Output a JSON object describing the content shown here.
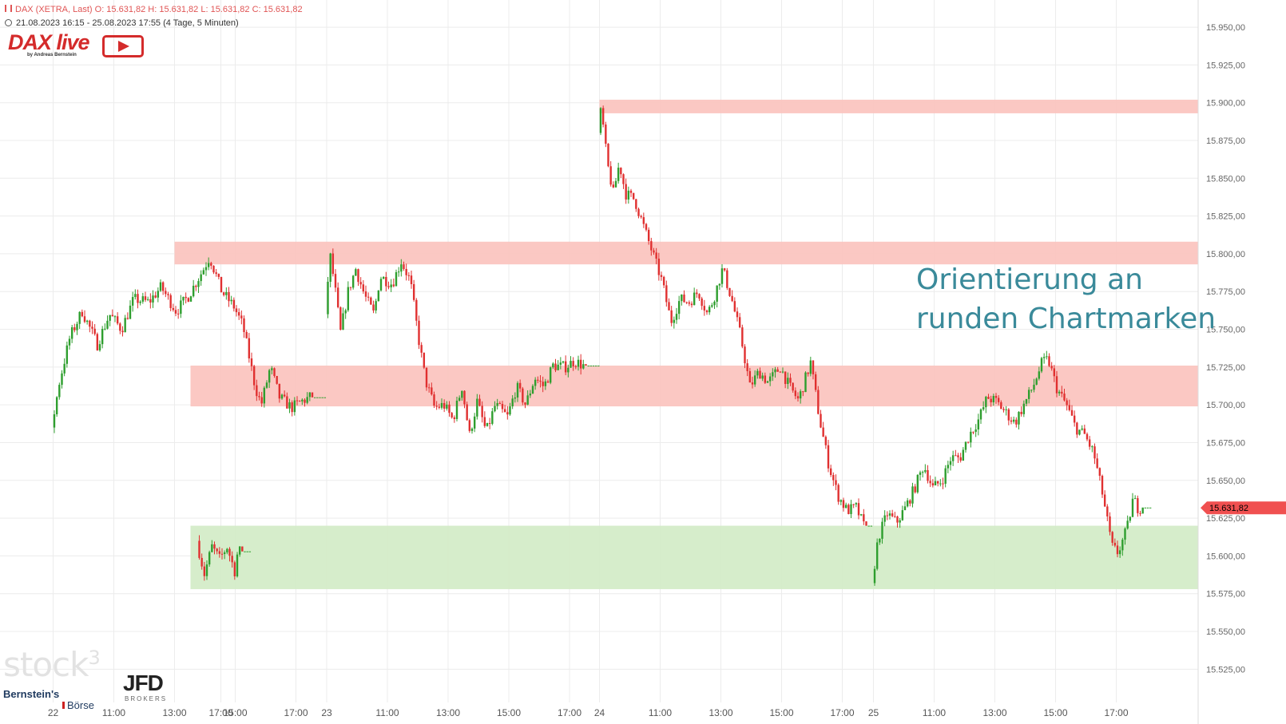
{
  "header": {
    "line1": "DAX (XETRA, Last)  O: 15.631,82  H: 15.631,82  L: 15.631,82  C: 15.631,82",
    "line2": "21.08.2023 16:15 - 25.08.2023 17:55   (4 Tage, 5 Minuten)"
  },
  "logo": {
    "title": "DAX live",
    "subtitle": "by Andreas Bernstein"
  },
  "annotation": {
    "line1": "Orientierung an",
    "line2": "runden Chartmarken"
  },
  "watermarks": {
    "stock": "stock",
    "stock_sup": "3",
    "bernstein": "Bernstein's",
    "boerse": "Börse",
    "jfd": "JFD",
    "brokers": "BROKERS"
  },
  "colors": {
    "up": "#2e9e2e",
    "down": "#e03030",
    "resistance_zone": "#fbc5c0",
    "support_zone": "#d4ecc8",
    "annotation": "#3a8a9a",
    "price_tag": "#f05050"
  },
  "chart_data": {
    "type": "candlestick",
    "ylim": [
      15503,
      15968
    ],
    "yticks": [
      15525,
      15550,
      15575,
      15600,
      15625,
      15650,
      15675,
      15700,
      15725,
      15750,
      15775,
      15800,
      15825,
      15850,
      15875,
      15900,
      15925,
      15950
    ],
    "ytick_labels": [
      "15.525,00",
      "15.550,00",
      "15.575,00",
      "15.600,00",
      "15.625,00",
      "15.650,00",
      "15.675,00",
      "15.700,00",
      "15.725,00",
      "15.750,00",
      "15.775,00",
      "15.800,00",
      "15.825,00",
      "15.850,00",
      "15.875,00",
      "15.900,00",
      "15.925,00",
      "15.950,00"
    ],
    "xticks": [
      {
        "label": "17:00",
        "session": 0,
        "hours": 17
      },
      {
        "label": "22",
        "session": 1,
        "hours": 9
      },
      {
        "label": "11:00",
        "session": 1,
        "hours": 11
      },
      {
        "label": "13:00",
        "session": 1,
        "hours": 13
      },
      {
        "label": "15:00",
        "session": 1,
        "hours": 15
      },
      {
        "label": "17:00",
        "session": 1,
        "hours": 17
      },
      {
        "label": "23",
        "session": 2,
        "hours": 9
      },
      {
        "label": "11:00",
        "session": 2,
        "hours": 11
      },
      {
        "label": "13:00",
        "session": 2,
        "hours": 13
      },
      {
        "label": "15:00",
        "session": 2,
        "hours": 15
      },
      {
        "label": "17:00",
        "session": 2,
        "hours": 17
      },
      {
        "label": "24",
        "session": 3,
        "hours": 9
      },
      {
        "label": "11:00",
        "session": 3,
        "hours": 11
      },
      {
        "label": "13:00",
        "session": 3,
        "hours": 13
      },
      {
        "label": "15:00",
        "session": 3,
        "hours": 15
      },
      {
        "label": "17:00",
        "session": 3,
        "hours": 17
      },
      {
        "label": "25",
        "session": 4,
        "hours": 9
      },
      {
        "label": "11:00",
        "session": 4,
        "hours": 11
      },
      {
        "label": "13:00",
        "session": 4,
        "hours": 13
      },
      {
        "label": "15:00",
        "session": 4,
        "hours": 15
      },
      {
        "label": "17:00",
        "session": 4,
        "hours": 17
      }
    ],
    "zones": [
      {
        "kind": "resistance",
        "from": 15893,
        "to": 15902,
        "start_session": 3,
        "start_hours": 9
      },
      {
        "kind": "resistance",
        "from": 15793,
        "to": 15808,
        "start_session": 1,
        "start_hours": 13
      },
      {
        "kind": "resistance",
        "from": 15699,
        "to": 15726,
        "start_session": 0,
        "start_hours": 16
      },
      {
        "kind": "support",
        "from": 15578,
        "to": 15620,
        "start_session": 0,
        "start_hours": 16
      }
    ],
    "last_price": 15631.82,
    "last_price_label": "15.631,82",
    "sessions": [
      {
        "name": "21.08",
        "start_hours": 16.25,
        "path": [
          [
            16.25,
            15610
          ],
          [
            16.5,
            15588
          ],
          [
            16.75,
            15606
          ],
          [
            17,
            15598
          ],
          [
            17.25,
            15606
          ],
          [
            17.5,
            15590
          ],
          [
            17.6,
            15603
          ],
          [
            17.92,
            15603
          ]
        ]
      },
      {
        "name": "22.08",
        "start_hours": 9,
        "path": [
          [
            9,
            15685
          ],
          [
            9.25,
            15715
          ],
          [
            9.6,
            15745
          ],
          [
            10,
            15762
          ],
          [
            10.5,
            15740
          ],
          [
            10.9,
            15760
          ],
          [
            11.3,
            15750
          ],
          [
            11.7,
            15770
          ],
          [
            12.2,
            15768
          ],
          [
            12.6,
            15778
          ],
          [
            13.1,
            15762
          ],
          [
            13.5,
            15772
          ],
          [
            14,
            15790
          ],
          [
            14.2,
            15798
          ],
          [
            14.6,
            15775
          ],
          [
            15,
            15765
          ],
          [
            15.3,
            15752
          ],
          [
            15.7,
            15712
          ],
          [
            15.9,
            15700
          ],
          [
            16.2,
            15725
          ],
          [
            16.5,
            15705
          ],
          [
            16.9,
            15698
          ],
          [
            17.2,
            15702
          ],
          [
            17.5,
            15705
          ],
          [
            17.92,
            15705
          ]
        ]
      },
      {
        "name": "23.08",
        "start_hours": 9,
        "path": [
          [
            9,
            15760
          ],
          [
            9.15,
            15800
          ],
          [
            9.3,
            15780
          ],
          [
            9.5,
            15748
          ],
          [
            9.75,
            15775
          ],
          [
            10,
            15790
          ],
          [
            10.3,
            15772
          ],
          [
            10.6,
            15760
          ],
          [
            10.8,
            15785
          ],
          [
            11.2,
            15780
          ],
          [
            11.5,
            15795
          ],
          [
            11.8,
            15782
          ],
          [
            12.1,
            15740
          ],
          [
            12.3,
            15716
          ],
          [
            12.6,
            15698
          ],
          [
            12.9,
            15700
          ],
          [
            13.2,
            15690
          ],
          [
            13.5,
            15712
          ],
          [
            13.75,
            15680
          ],
          [
            14,
            15702
          ],
          [
            14.3,
            15682
          ],
          [
            14.6,
            15700
          ],
          [
            15,
            15692
          ],
          [
            15.3,
            15712
          ],
          [
            15.6,
            15700
          ],
          [
            15.9,
            15718
          ],
          [
            16.2,
            15712
          ],
          [
            16.5,
            15726
          ],
          [
            16.9,
            15725
          ],
          [
            17.2,
            15729
          ],
          [
            17.5,
            15726
          ],
          [
            17.92,
            15726
          ]
        ]
      },
      {
        "name": "24.08",
        "start_hours": 9,
        "path": [
          [
            9,
            15880
          ],
          [
            9.1,
            15896
          ],
          [
            9.3,
            15860
          ],
          [
            9.5,
            15840
          ],
          [
            9.7,
            15860
          ],
          [
            9.9,
            15840
          ],
          [
            10.2,
            15836
          ],
          [
            10.5,
            15818
          ],
          [
            10.8,
            15800
          ],
          [
            11.1,
            15782
          ],
          [
            11.4,
            15755
          ],
          [
            11.7,
            15770
          ],
          [
            12,
            15768
          ],
          [
            12.3,
            15775
          ],
          [
            12.6,
            15760
          ],
          [
            12.8,
            15770
          ],
          [
            13.1,
            15790
          ],
          [
            13.4,
            15770
          ],
          [
            13.7,
            15745
          ],
          [
            14,
            15712
          ],
          [
            14.3,
            15722
          ],
          [
            14.6,
            15715
          ],
          [
            15,
            15725
          ],
          [
            15.3,
            15712
          ],
          [
            15.6,
            15703
          ],
          [
            16,
            15728
          ],
          [
            16.3,
            15690
          ],
          [
            16.6,
            15660
          ],
          [
            16.9,
            15640
          ],
          [
            17.2,
            15630
          ],
          [
            17.5,
            15632
          ],
          [
            17.75,
            15620
          ],
          [
            17.92,
            15620
          ]
        ]
      },
      {
        "name": "25.08",
        "start_hours": 9,
        "path": [
          [
            9,
            15582
          ],
          [
            9.2,
            15612
          ],
          [
            9.5,
            15628
          ],
          [
            9.8,
            15622
          ],
          [
            10.1,
            15632
          ],
          [
            10.4,
            15645
          ],
          [
            10.7,
            15660
          ],
          [
            11,
            15645
          ],
          [
            11.3,
            15650
          ],
          [
            11.6,
            15665
          ],
          [
            11.9,
            15665
          ],
          [
            12.2,
            15680
          ],
          [
            12.5,
            15690
          ],
          [
            12.8,
            15705
          ],
          [
            13.1,
            15702
          ],
          [
            13.4,
            15695
          ],
          [
            13.7,
            15688
          ],
          [
            14,
            15700
          ],
          [
            14.3,
            15712
          ],
          [
            14.6,
            15728
          ],
          [
            14.8,
            15730
          ],
          [
            15.1,
            15710
          ],
          [
            15.4,
            15700
          ],
          [
            15.7,
            15685
          ],
          [
            16,
            15680
          ],
          [
            16.3,
            15668
          ],
          [
            16.6,
            15640
          ],
          [
            16.9,
            15606
          ],
          [
            17.1,
            15602
          ],
          [
            17.4,
            15618
          ],
          [
            17.6,
            15638
          ],
          [
            17.75,
            15632
          ],
          [
            18.1,
            15632
          ]
        ]
      }
    ]
  }
}
